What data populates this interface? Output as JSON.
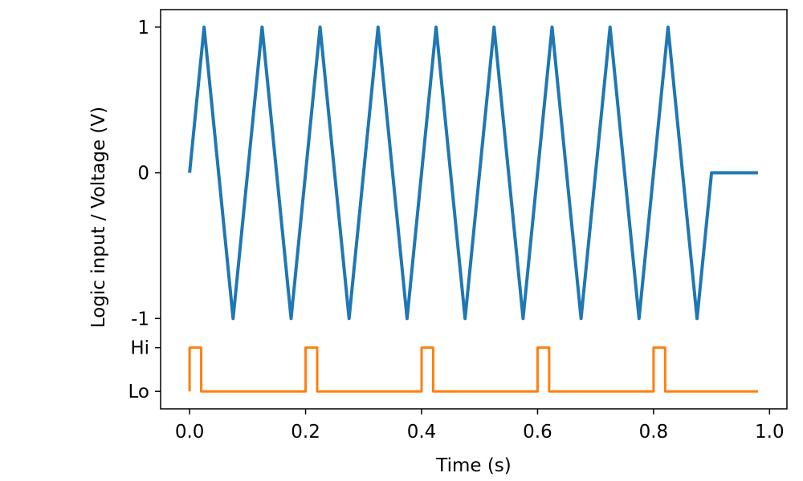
{
  "chart_data": {
    "type": "line",
    "xlabel": "Time (s)",
    "ylabel": "Logic input / Voltage (V)",
    "xlim": [
      -0.05,
      1.03
    ],
    "ylim": [
      -1.62,
      1.12
    ],
    "x_ticks": [
      0.0,
      0.2,
      0.4,
      0.6,
      0.8,
      1.0
    ],
    "x_tick_labels": [
      "0.0",
      "0.2",
      "0.4",
      "0.6",
      "0.8",
      "1.0"
    ],
    "y_ticks": [
      {
        "value": 1,
        "label": "1"
      },
      {
        "value": 0,
        "label": "0"
      },
      {
        "value": -1,
        "label": "-1"
      },
      {
        "value": -1.2,
        "label": "Hi"
      },
      {
        "value": -1.5,
        "label": "Lo"
      }
    ],
    "grid": false,
    "legend": "none",
    "series": [
      {
        "color": "#1f77b4",
        "x": [
          0.0,
          0.025,
          0.075,
          0.125,
          0.175,
          0.225,
          0.275,
          0.325,
          0.375,
          0.425,
          0.475,
          0.525,
          0.575,
          0.625,
          0.675,
          0.725,
          0.775,
          0.825,
          0.875,
          0.9,
          0.98
        ],
        "y": [
          0,
          1,
          -1,
          1,
          -1,
          1,
          -1,
          1,
          -1,
          1,
          -1,
          1,
          -1,
          1,
          -1,
          1,
          -1,
          1,
          -1,
          0,
          0
        ]
      },
      {
        "color": "#ff7f0e",
        "x": [
          0.0,
          0.0,
          0.02,
          0.02,
          0.2,
          0.2,
          0.22,
          0.22,
          0.4,
          0.4,
          0.42,
          0.42,
          0.6,
          0.6,
          0.62,
          0.62,
          0.8,
          0.8,
          0.82,
          0.82,
          0.98
        ],
        "y": [
          -1.5,
          -1.2,
          -1.2,
          -1.5,
          -1.5,
          -1.2,
          -1.2,
          -1.5,
          -1.5,
          -1.2,
          -1.2,
          -1.5,
          -1.5,
          -1.2,
          -1.2,
          -1.5,
          -1.5,
          -1.2,
          -1.2,
          -1.5,
          -1.5
        ]
      }
    ]
  }
}
